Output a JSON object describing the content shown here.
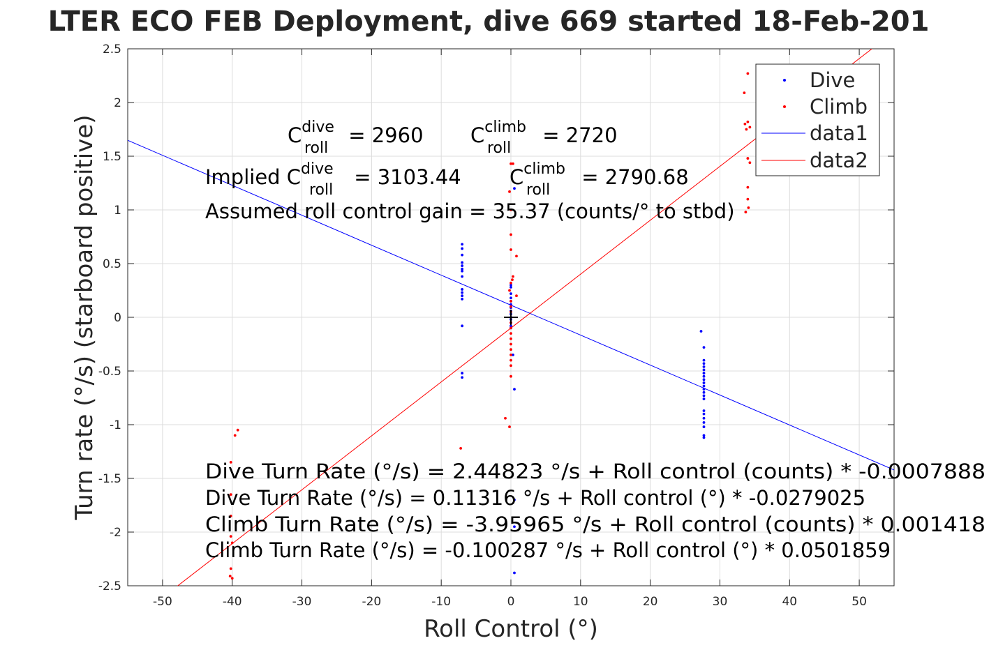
{
  "chart_data": {
    "type": "scatter",
    "title": "LTER ECO FEB Deployment, dive 669 started 18-Feb-201",
    "xlabel": "Roll Control (°)",
    "ylabel": "Turn rate (°/s) (starboard positive)",
    "xlim": [
      -55,
      55
    ],
    "ylim": [
      -2.5,
      2.5
    ],
    "x_ticks": [
      -50,
      -40,
      -30,
      -20,
      -10,
      0,
      10,
      20,
      30,
      40,
      50
    ],
    "y_ticks": [
      -2.5,
      -2,
      -1.5,
      -1,
      -0.5,
      0,
      0.5,
      1,
      1.5,
      2,
      2.5
    ],
    "grid": true,
    "legend_position": "top-right",
    "series": [
      {
        "name": "Dive",
        "kind": "points",
        "color": "#0000ff",
        "points": [
          [
            -7,
            0.68
          ],
          [
            -7,
            0.64
          ],
          [
            -7,
            0.58
          ],
          [
            -7,
            0.51
          ],
          [
            -7,
            0.48
          ],
          [
            -7,
            0.45
          ],
          [
            -7,
            0.43
          ],
          [
            -7,
            0.38
          ],
          [
            -7,
            0.26
          ],
          [
            -7,
            0.23
          ],
          [
            -7,
            0.2
          ],
          [
            -7,
            0.17
          ],
          [
            -7,
            -0.08
          ],
          [
            -7,
            -0.52
          ],
          [
            -7,
            -0.56
          ],
          [
            0,
            0.3
          ],
          [
            0,
            0.28
          ],
          [
            0,
            0.22
          ],
          [
            0,
            0.18
          ],
          [
            0,
            0.15
          ],
          [
            0,
            0.12
          ],
          [
            0,
            0.09
          ],
          [
            0,
            0.06
          ],
          [
            0,
            0.03
          ],
          [
            0,
            0.0
          ],
          [
            0,
            -0.02
          ],
          [
            0,
            -0.05
          ],
          [
            0,
            -0.08
          ],
          [
            0,
            -0.1
          ],
          [
            0.3,
            -0.35
          ],
          [
            0.5,
            -0.67
          ],
          [
            0.5,
            1.2
          ],
          [
            0.5,
            -1.7
          ],
          [
            0.5,
            -1.95
          ],
          [
            0.5,
            -2.38
          ],
          [
            27.3,
            -0.13
          ],
          [
            27.7,
            -0.28
          ],
          [
            27.7,
            -0.4
          ],
          [
            27.7,
            -0.43
          ],
          [
            27.7,
            -0.46
          ],
          [
            27.7,
            -0.49
          ],
          [
            27.7,
            -0.52
          ],
          [
            27.7,
            -0.55
          ],
          [
            27.7,
            -0.58
          ],
          [
            27.7,
            -0.61
          ],
          [
            27.7,
            -0.64
          ],
          [
            27.7,
            -0.67
          ],
          [
            27.7,
            -0.7
          ],
          [
            27.7,
            -0.73
          ],
          [
            27.7,
            -0.76
          ],
          [
            27.7,
            -0.87
          ],
          [
            27.7,
            -0.9
          ],
          [
            27.7,
            -0.94
          ],
          [
            27.7,
            -0.98
          ],
          [
            27.7,
            -1.02
          ],
          [
            27.7,
            -1.1
          ],
          [
            27.7,
            -1.12
          ]
        ]
      },
      {
        "name": "Climb",
        "kind": "points",
        "color": "#ff0000",
        "points": [
          [
            -40.2,
            -1.35
          ],
          [
            -40.2,
            -1.65
          ],
          [
            -40.2,
            -1.85
          ],
          [
            -40.2,
            -2.04
          ],
          [
            -40,
            -2.1
          ],
          [
            -40.2,
            -2.34
          ],
          [
            -40.3,
            -2.41
          ],
          [
            -40,
            -2.43
          ],
          [
            -39.6,
            -1.1
          ],
          [
            -39.2,
            -1.05
          ],
          [
            -7.2,
            -1.22
          ],
          [
            0,
            1.43
          ],
          [
            0.3,
            1.43
          ],
          [
            -0.2,
            1.17
          ],
          [
            0,
            1.0
          ],
          [
            0,
            0.77
          ],
          [
            0,
            0.63
          ],
          [
            0.8,
            0.57
          ],
          [
            0.3,
            0.38
          ],
          [
            0.2,
            0.35
          ],
          [
            0,
            0.32
          ],
          [
            -0.2,
            0.25
          ],
          [
            0.8,
            0.2
          ],
          [
            0,
            0.15
          ],
          [
            0,
            0.1
          ],
          [
            0,
            0.05
          ],
          [
            0,
            -0.05
          ],
          [
            0,
            -0.1
          ],
          [
            0,
            -0.15
          ],
          [
            0,
            -0.2
          ],
          [
            0,
            -0.25
          ],
          [
            0,
            -0.3
          ],
          [
            0,
            -0.35
          ],
          [
            0,
            -0.4
          ],
          [
            0,
            -0.45
          ],
          [
            0,
            -0.55
          ],
          [
            -0.8,
            -0.94
          ],
          [
            -0.2,
            -1.02
          ],
          [
            33.5,
            2.09
          ],
          [
            34,
            2.27
          ],
          [
            33.6,
            1.8
          ],
          [
            33.8,
            1.75
          ],
          [
            34,
            1.82
          ],
          [
            34.3,
            1.77
          ],
          [
            34,
            1.48
          ],
          [
            34.3,
            1.44
          ],
          [
            34,
            1.21
          ],
          [
            34,
            1.1
          ],
          [
            34.1,
            1.02
          ],
          [
            33.7,
            0.98
          ]
        ]
      },
      {
        "name": "data1",
        "kind": "line",
        "color": "#0000ff",
        "intercept": 0.11316,
        "slope": -0.0279025
      },
      {
        "name": "data2",
        "kind": "line",
        "color": "#ff0000",
        "intercept": -0.100287,
        "slope": 0.0501859
      }
    ],
    "annotations": {
      "c_roll_dive": {
        "base": "C",
        "sup": "dive",
        "sub": "roll",
        "rest": " = 2960"
      },
      "c_roll_climb": {
        "base": "C",
        "sup": "climb",
        "sub": "roll",
        "rest": " = 2720"
      },
      "implied_dive": {
        "pre": "Implied C",
        "sup": "dive",
        "sub": "roll",
        "rest": " = 3103.44"
      },
      "implied_climb": {
        "base": "C",
        "sup": "climb",
        "sub": "roll",
        "rest": " = 2790.68"
      },
      "gain": "Assumed roll control gain = 35.37 (counts/° to stbd)",
      "eq1": "Dive Turn Rate (°/s) = 2.44823 °/s + Roll control (counts) * -0.0007888",
      "eq2": "Dive Turn Rate (°/s) = 0.11316 °/s + Roll control (°) * -0.0279025",
      "eq3": "Climb Turn Rate (°/s) = -3.95965 °/s + Roll control (counts) * 0.001418",
      "eq4": "Climb Turn Rate (°/s) = -0.100287 °/s + Roll control (°) * 0.0501859"
    }
  }
}
